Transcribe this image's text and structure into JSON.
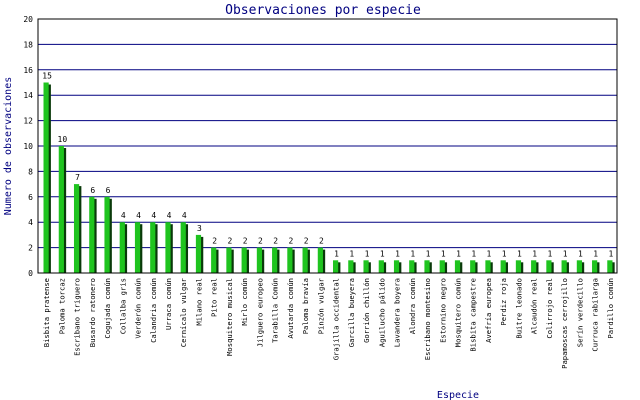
{
  "colors": {
    "background": "#ffffff",
    "plot_border": "#000000",
    "gridline": "#000080",
    "bar_front": "#1fc41f",
    "bar_shadow": "#0a3a0a",
    "title": "#000080",
    "axis_label": "#000080",
    "tick_label": "#000000",
    "value_label": "#000000"
  },
  "chart_data": {
    "type": "bar",
    "title": "Observaciones por especie",
    "xlabel": "Especie",
    "ylabel": "Numero de observaciones",
    "ylim": [
      0,
      20
    ],
    "yticks": [
      0,
      2,
      4,
      6,
      8,
      10,
      12,
      14,
      16,
      18,
      20
    ],
    "grid": true,
    "legend": "none",
    "categories": [
      "Bisbita pratense",
      "Paloma torcaz",
      "Escribano triguero",
      "Busardo ratonero",
      "Cogujada común",
      "Collalba gris",
      "Verderón común",
      "Calandria común",
      "Urraca común",
      "Cernícalo vulgar",
      "Milano real",
      "Pito real",
      "Mosquitero musical",
      "Mirlo común",
      "Jilguero europeo",
      "Tarabilla Común",
      "Avutarda común",
      "Paloma bravía",
      "Pinzón vulgar",
      "Grajilla occidental",
      "Garcilla bueyera",
      "Gorrión chillón",
      "Aguilucho pálido",
      "Lavandera boyera",
      "Alondra común",
      "Escribano montesino",
      "Estornino negro",
      "Mosquitero común",
      "Bisbita campestre",
      "Avefría europea",
      "Perdiz roja",
      "Buitre leonado",
      "Alcaudón real",
      "Colirrojo real",
      "Papamoscas cerrojillo",
      "Serín verdecillo",
      "Curruca rabilarga",
      "Pardillo común"
    ],
    "values": [
      15,
      10,
      7,
      6,
      6,
      4,
      4,
      4,
      4,
      4,
      3,
      2,
      2,
      2,
      2,
      2,
      2,
      2,
      2,
      1,
      1,
      1,
      1,
      1,
      1,
      1,
      1,
      1,
      1,
      1,
      1,
      1,
      1,
      1,
      1,
      1,
      1,
      1
    ]
  }
}
